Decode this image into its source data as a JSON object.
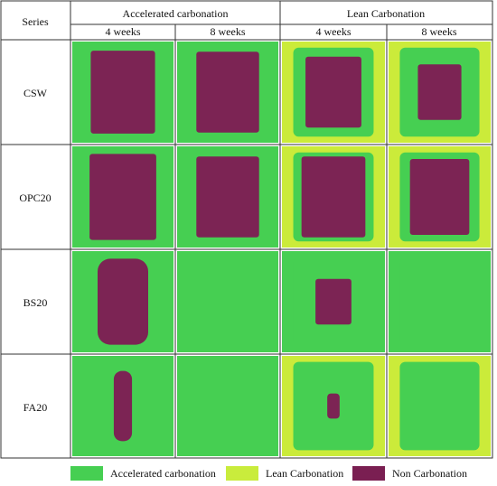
{
  "table": {
    "series_header": "Series",
    "groups": [
      "Accelerated carbonation",
      "Lean Carbonation"
    ],
    "durations": [
      "4 weeks",
      "8 weeks",
      "4 weeks",
      "8 weeks"
    ],
    "rows": [
      "CSW",
      "OPC20",
      "BS20",
      "FA20"
    ]
  },
  "legend": [
    {
      "label": "Accelerated carbonation",
      "color": "#46cf52"
    },
    {
      "label": "Lean Carbonation",
      "color": "#c9ec3c"
    },
    {
      "label": "Non Carbonation",
      "color": "#7a1f52"
    }
  ],
  "colors": {
    "accelerated": "#46cf52",
    "lean_background": "#cbeb3a",
    "non_carbonated": "#7c2454",
    "grid_line": "#333333"
  },
  "samples": [
    [
      {
        "bg": "accelerated",
        "outer": null,
        "inner": "rect",
        "inner_fraction": 0.82
      },
      {
        "bg": "accelerated",
        "outer": null,
        "inner": "rect",
        "inner_fraction": 0.8
      },
      {
        "bg": "lean",
        "outer": "accelerated",
        "inner": "rect",
        "inner_fraction": 0.7
      },
      {
        "bg": "lean",
        "outer": "accelerated",
        "inner": "rect",
        "inner_fraction": 0.55
      }
    ],
    [
      {
        "bg": "accelerated",
        "outer": null,
        "inner": "rect",
        "inner_fraction": 0.85
      },
      {
        "bg": "accelerated",
        "outer": null,
        "inner": "rect",
        "inner_fraction": 0.8
      },
      {
        "bg": "lean",
        "outer": "accelerated",
        "inner": "rect",
        "inner_fraction": 0.8
      },
      {
        "bg": "lean",
        "outer": "accelerated",
        "inner": "rect",
        "inner_fraction": 0.75
      }
    ],
    [
      {
        "bg": "accelerated",
        "outer": null,
        "inner": "pill",
        "inner_fraction": 0.85
      },
      {
        "bg": "accelerated",
        "outer": null,
        "inner": null,
        "inner_fraction": 0
      },
      {
        "bg": "accelerated",
        "outer": "accelerated",
        "inner": "rect",
        "inner_fraction": 0.45
      },
      {
        "bg": "accelerated",
        "outer": "accelerated",
        "inner": null,
        "inner_fraction": 0
      }
    ],
    [
      {
        "bg": "accelerated",
        "outer": null,
        "inner": "sliver",
        "inner_fraction": 0.7
      },
      {
        "bg": "accelerated",
        "outer": null,
        "inner": null,
        "inner_fraction": 0
      },
      {
        "bg": "lean",
        "outer": "accelerated",
        "inner": "small",
        "inner_fraction": 0.25
      },
      {
        "bg": "lean",
        "outer": "accelerated",
        "inner": null,
        "inner_fraction": 0
      }
    ]
  ]
}
